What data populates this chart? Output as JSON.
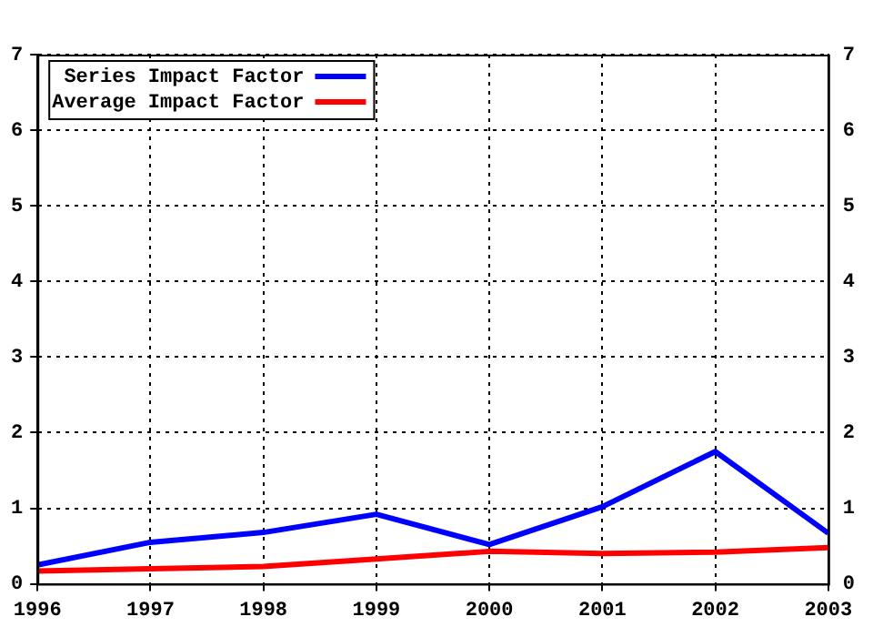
{
  "chart_data": {
    "type": "line",
    "x": [
      1996,
      1997,
      1998,
      1999,
      2000,
      2001,
      2002,
      2003
    ],
    "series": [
      {
        "name": "Series Impact Factor",
        "color": "#0000ff",
        "values": [
          0.25,
          0.55,
          0.68,
          0.92,
          0.52,
          1.02,
          1.75,
          0.67
        ]
      },
      {
        "name": "Average Impact Factor",
        "color": "#ff0000",
        "values": [
          0.17,
          0.2,
          0.23,
          0.33,
          0.43,
          0.4,
          0.42,
          0.48
        ]
      }
    ],
    "xlim": [
      1996,
      2003
    ],
    "xticks": [
      1996,
      1997,
      1998,
      1999,
      2000,
      2001,
      2002,
      2003
    ],
    "ylim": [
      0,
      7
    ],
    "yticks": [
      0,
      1,
      2,
      3,
      4,
      5,
      6,
      7
    ],
    "y2lim": [
      0,
      7
    ],
    "y2ticks": [
      0,
      1,
      2,
      3,
      4,
      5,
      6,
      7
    ],
    "grid": true,
    "legend": "top left",
    "marker": "none",
    "line_style": "solid"
  }
}
